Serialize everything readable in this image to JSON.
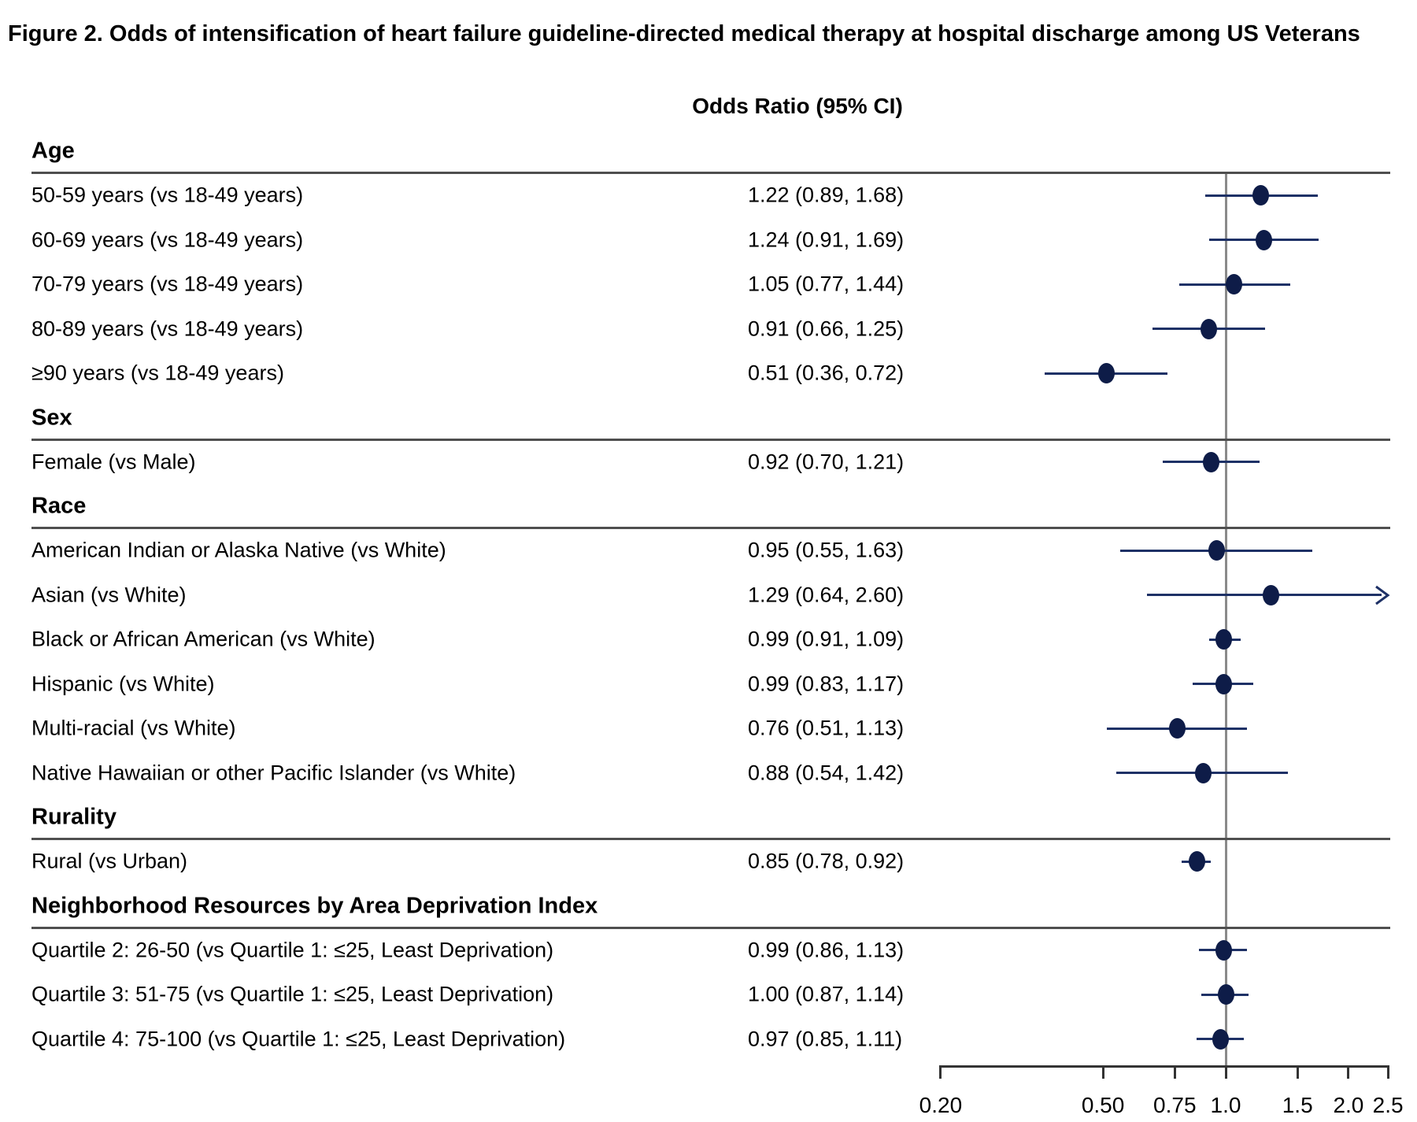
{
  "title": "Figure 2. Odds of intensification of heart failure guideline-directed medical therapy at hospital discharge among US Veterans",
  "column_header": "Odds Ratio (95% CI)",
  "colors": {
    "marker": "#0e1c48",
    "ci_line": "#1e3166",
    "section_rule": "#4f4f4f",
    "axis": "#333333",
    "reference_line": "#8a8a8a",
    "text": "#000000",
    "background": "#ffffff"
  },
  "chart_data": {
    "type": "scatter",
    "subtype": "forest-plot",
    "title": "Figure 2. Odds of intensification of heart failure guideline-directed medical therapy at hospital discharge among US Veterans",
    "value_column_header": "Odds Ratio (95% CI)",
    "x_scale": "log",
    "xlim": [
      0.2,
      2.5
    ],
    "x_tick_values": [
      0.2,
      0.5,
      0.75,
      1.0,
      1.5,
      2.0,
      2.5
    ],
    "x_tick_labels": [
      "0.20",
      "0.50",
      "0.75",
      "1.0",
      "1.5",
      "2.0",
      "2.5"
    ],
    "reference_line_value": 1.0,
    "grid": false,
    "legend": false,
    "sections": [
      {
        "header": "Age",
        "rows": [
          {
            "label": "50-59 years (vs 18-49 years)",
            "or_text": "1.22 (0.89, 1.68)",
            "or": 1.22,
            "lo": 0.89,
            "hi": 1.68
          },
          {
            "label": "60-69 years (vs 18-49 years)",
            "or_text": "1.24 (0.91, 1.69)",
            "or": 1.24,
            "lo": 0.91,
            "hi": 1.69
          },
          {
            "label": "70-79 years (vs 18-49 years)",
            "or_text": "1.05 (0.77, 1.44)",
            "or": 1.05,
            "lo": 0.77,
            "hi": 1.44
          },
          {
            "label": "80-89 years (vs 18-49 years)",
            "or_text": "0.91 (0.66, 1.25)",
            "or": 0.91,
            "lo": 0.66,
            "hi": 1.25
          },
          {
            "label": "≥90 years (vs 18-49 years)",
            "or_text": "0.51 (0.36, 0.72)",
            "or": 0.51,
            "lo": 0.36,
            "hi": 0.72
          }
        ]
      },
      {
        "header": "Sex",
        "rows": [
          {
            "label": "Female (vs Male)",
            "or_text": "0.92 (0.70, 1.21)",
            "or": 0.92,
            "lo": 0.7,
            "hi": 1.21
          }
        ]
      },
      {
        "header": "Race",
        "rows": [
          {
            "label": "American Indian or Alaska Native (vs White)",
            "or_text": "0.95 (0.55, 1.63)",
            "or": 0.95,
            "lo": 0.55,
            "hi": 1.63
          },
          {
            "label": "Asian (vs White)",
            "or_text": "1.29 (0.64, 2.60)",
            "or": 1.29,
            "lo": 0.64,
            "hi": 2.6
          },
          {
            "label": "Black or African American (vs White)",
            "or_text": "0.99 (0.91, 1.09)",
            "or": 0.99,
            "lo": 0.91,
            "hi": 1.09
          },
          {
            "label": "Hispanic (vs White)",
            "or_text": "0.99 (0.83, 1.17)",
            "or": 0.99,
            "lo": 0.83,
            "hi": 1.17
          },
          {
            "label": "Multi-racial (vs White)",
            "or_text": "0.76 (0.51, 1.13)",
            "or": 0.76,
            "lo": 0.51,
            "hi": 1.13
          },
          {
            "label": "Native Hawaiian or other Pacific Islander (vs White)",
            "or_text": "0.88 (0.54, 1.42)",
            "or": 0.88,
            "lo": 0.54,
            "hi": 1.42
          }
        ]
      },
      {
        "header": "Rurality",
        "rows": [
          {
            "label": "Rural (vs Urban)",
            "or_text": "0.85 (0.78, 0.92)",
            "or": 0.85,
            "lo": 0.78,
            "hi": 0.92
          }
        ]
      },
      {
        "header": "Neighborhood Resources by Area Deprivation Index",
        "rows": [
          {
            "label": "Quartile 2: 26-50 (vs Quartile 1: ≤25, Least Deprivation)",
            "or_text": "0.99 (0.86, 1.13)",
            "or": 0.99,
            "lo": 0.86,
            "hi": 1.13
          },
          {
            "label": "Quartile 3: 51-75 (vs Quartile 1: ≤25, Least Deprivation)",
            "or_text": "1.00 (0.87, 1.14)",
            "or": 1.0,
            "lo": 0.87,
            "hi": 1.14
          },
          {
            "label": "Quartile 4: 75-100 (vs Quartile 1: ≤25, Least Deprivation)",
            "or_text": "0.97 (0.85, 1.11)",
            "or": 0.97,
            "lo": 0.85,
            "hi": 1.11
          }
        ]
      }
    ]
  }
}
